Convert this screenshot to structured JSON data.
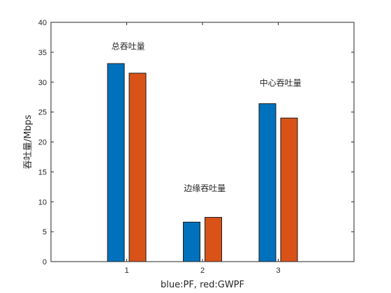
{
  "chart_data": {
    "type": "bar",
    "categories": [
      "1",
      "2",
      "3"
    ],
    "series": [
      {
        "color": "#0072BD",
        "values": [
          33.1,
          6.6,
          26.4
        ]
      },
      {
        "color": "#D95319",
        "values": [
          31.5,
          7.4,
          24.0
        ]
      }
    ],
    "xlabel": "blue:PF,  red:GWPF",
    "ylabel": "吞吐量/Mbps",
    "ylim": [
      0,
      40
    ],
    "xlim": [
      0,
      4
    ],
    "yticks": [
      "0",
      "5",
      "10",
      "15",
      "20",
      "25",
      "30",
      "35",
      "40"
    ],
    "grid": false,
    "annotations": [
      {
        "text": "总吞吐量",
        "x": 1.02,
        "y": 35.5
      },
      {
        "text": "边缘吞吐量",
        "x": 2.03,
        "y": 11.8
      },
      {
        "text": "中心吞吐量",
        "x": 3.03,
        "y": 29.4
      }
    ]
  }
}
